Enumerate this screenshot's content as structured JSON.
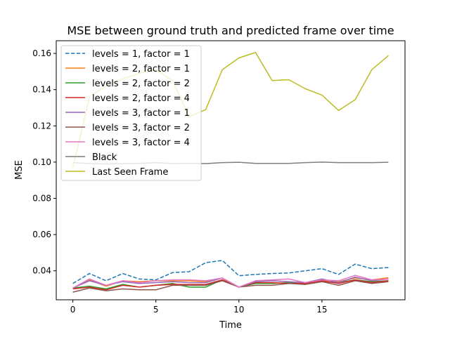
{
  "chart_data": {
    "type": "line",
    "title": "MSE between ground truth and predicted frame over time",
    "xlabel": "Time",
    "ylabel": "MSE",
    "xlim": [
      -1,
      20
    ],
    "ylim": [
      0.024,
      0.167
    ],
    "x_ticks": [
      0,
      5,
      10,
      15
    ],
    "y_ticks": [
      0.04,
      0.06,
      0.08,
      0.1,
      0.12,
      0.14,
      0.16
    ],
    "y_tick_labels": [
      "0.04",
      "0.06",
      "0.08",
      "0.10",
      "0.12",
      "0.14",
      "0.16"
    ],
    "grid": false,
    "legend_position": "upper-left",
    "x": [
      0,
      1,
      2,
      3,
      4,
      5,
      6,
      7,
      8,
      9,
      10,
      11,
      12,
      13,
      14,
      15,
      16,
      17,
      18,
      19
    ],
    "series": [
      {
        "name": "levels = 1, factor = 1",
        "color": "#1f77b4",
        "dashed": true,
        "values": [
          0.033,
          0.0385,
          0.0345,
          0.0385,
          0.0355,
          0.035,
          0.039,
          0.0395,
          0.0445,
          0.0457,
          0.0373,
          0.038,
          0.0385,
          0.0388,
          0.04,
          0.0412,
          0.038,
          0.0437,
          0.0412,
          0.0418
        ]
      },
      {
        "name": "levels = 2, factor = 1",
        "color": "#ff7f0e",
        "dashed": false,
        "values": [
          0.0305,
          0.035,
          0.0315,
          0.0345,
          0.034,
          0.0345,
          0.0345,
          0.0345,
          0.034,
          0.036,
          0.031,
          0.0345,
          0.0345,
          0.034,
          0.033,
          0.035,
          0.034,
          0.036,
          0.035,
          0.0362
        ]
      },
      {
        "name": "levels = 2, factor = 2",
        "color": "#2ca02c",
        "dashed": false,
        "values": [
          0.0305,
          0.0315,
          0.03,
          0.0325,
          0.031,
          0.032,
          0.033,
          0.031,
          0.031,
          0.035,
          0.031,
          0.033,
          0.033,
          0.0335,
          0.0325,
          0.034,
          0.0335,
          0.035,
          0.034,
          0.0345
        ]
      },
      {
        "name": "levels = 2, factor = 4",
        "color": "#d62728",
        "dashed": false,
        "values": [
          0.03,
          0.031,
          0.0295,
          0.032,
          0.031,
          0.032,
          0.0325,
          0.0325,
          0.0325,
          0.035,
          0.031,
          0.0335,
          0.0335,
          0.033,
          0.033,
          0.0345,
          0.033,
          0.035,
          0.0335,
          0.0345
        ]
      },
      {
        "name": "levels = 3, factor = 1",
        "color": "#9467bd",
        "dashed": false,
        "values": [
          0.0305,
          0.0345,
          0.032,
          0.034,
          0.033,
          0.0335,
          0.034,
          0.0335,
          0.0335,
          0.036,
          0.031,
          0.034,
          0.0345,
          0.034,
          0.0335,
          0.0355,
          0.0335,
          0.0365,
          0.0345,
          0.0355
        ]
      },
      {
        "name": "levels = 3, factor = 2",
        "color": "#8c564b",
        "dashed": false,
        "values": [
          0.0282,
          0.0305,
          0.029,
          0.03,
          0.0295,
          0.0295,
          0.032,
          0.032,
          0.032,
          0.0345,
          0.031,
          0.032,
          0.032,
          0.033,
          0.0325,
          0.034,
          0.032,
          0.0345,
          0.033,
          0.034
        ]
      },
      {
        "name": "levels = 3, factor = 4",
        "color": "#e377c2",
        "dashed": false,
        "values": [
          0.0305,
          0.0355,
          0.032,
          0.0345,
          0.0335,
          0.0345,
          0.035,
          0.035,
          0.0345,
          0.036,
          0.031,
          0.0345,
          0.035,
          0.0355,
          0.0335,
          0.035,
          0.0345,
          0.0375,
          0.035,
          0.0355
        ]
      },
      {
        "name": "Black",
        "color": "#7f7f7f",
        "dashed": false,
        "values": [
          0.0997,
          0.0992,
          0.099,
          0.0992,
          0.0993,
          0.0997,
          0.0992,
          0.0993,
          0.0992,
          0.0997,
          0.0999,
          0.0993,
          0.0993,
          0.0993,
          0.0997,
          0.1,
          0.0997,
          0.0997,
          0.0997,
          0.0999
        ]
      },
      {
        "name": "Last Seen Frame",
        "color": "#bcbd22",
        "dashed": false,
        "values": [
          0.097,
          0.136,
          0.142,
          0.146,
          0.149,
          0.151,
          0.145,
          0.125,
          0.129,
          0.151,
          0.1575,
          0.1605,
          0.145,
          0.1455,
          0.1405,
          0.137,
          0.1285,
          0.1345,
          0.151,
          0.1588
        ]
      }
    ]
  }
}
